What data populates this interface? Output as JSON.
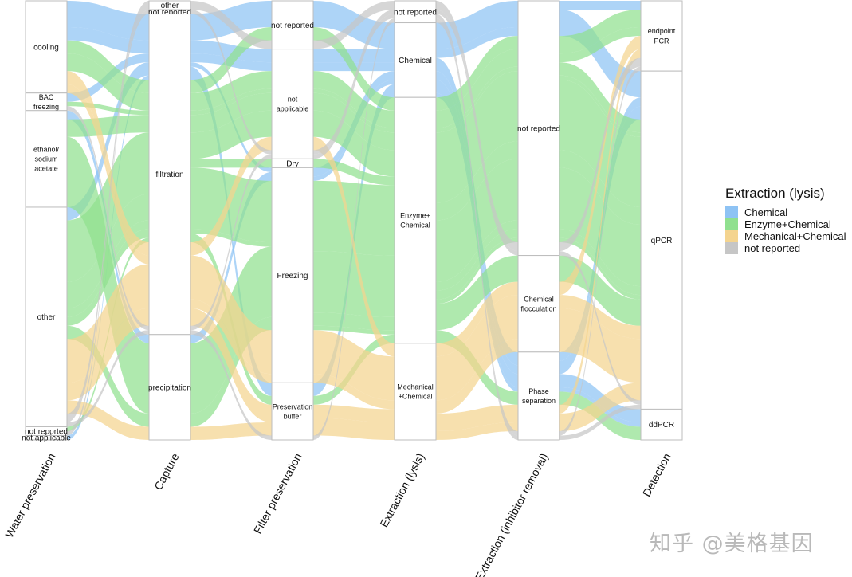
{
  "chart_data": {
    "type": "alluvial",
    "title": "",
    "axes": [
      {
        "key": "w",
        "label": "Water preservation",
        "strata": [
          {
            "name": "cooling",
            "label": "cooling"
          },
          {
            "name": "BAC",
            "label": "BAC\nfreezing"
          },
          {
            "name": "ethanol",
            "label": "ethanol/\nsodium\nacetate"
          },
          {
            "name": "other",
            "label": "other"
          },
          {
            "name": "nr",
            "label": "not reported"
          },
          {
            "name": "na",
            "label": "not applicable"
          }
        ]
      },
      {
        "key": "c",
        "label": "Capture",
        "strata": [
          {
            "name": "other",
            "label": "other"
          },
          {
            "name": "nr",
            "label": "not reported"
          },
          {
            "name": "filt",
            "label": "filtration"
          },
          {
            "name": "precip",
            "label": "precipitation"
          }
        ]
      },
      {
        "key": "f",
        "label": "Filter preservation",
        "strata": [
          {
            "name": "nr",
            "label": "not reported"
          },
          {
            "name": "na",
            "label": "not\napplicable"
          },
          {
            "name": "Dry",
            "label": "Dry"
          },
          {
            "name": "Freezing",
            "label": "Freezing"
          },
          {
            "name": "PB",
            "label": "Preservation\nbuffer"
          }
        ]
      },
      {
        "key": "e",
        "label": "Extraction (lysis)",
        "strata": [
          {
            "name": "nr",
            "label": "not reported"
          },
          {
            "name": "Chem",
            "label": "Chemical"
          },
          {
            "name": "Enz",
            "label": "Enzyme+\nChemical"
          },
          {
            "name": "Mech",
            "label": "Mechanical\n+Chemical"
          }
        ]
      },
      {
        "key": "i",
        "label": "Extraction (inhibitor removal)",
        "strata": [
          {
            "name": "nr",
            "label": "not reported"
          },
          {
            "name": "CF",
            "label": "Chemical\nflocculation"
          },
          {
            "name": "PS",
            "label": "Phase\nseparation"
          }
        ]
      },
      {
        "key": "d",
        "label": "Detection",
        "strata": [
          {
            "name": "endpoint",
            "label": "endpoint\nPCR"
          },
          {
            "name": "qPCR",
            "label": "qPCR"
          },
          {
            "name": "ddPCR",
            "label": "ddPCR"
          }
        ]
      }
    ],
    "fill_by": "e",
    "legend": {
      "title": "Extraction (lysis)",
      "placement": "right",
      "items": [
        {
          "key": "Chem",
          "label": "Chemical",
          "color": "#8ec3f4"
        },
        {
          "key": "Enz",
          "label": "Enzyme+Chemical",
          "color": "#90e08f"
        },
        {
          "key": "Mech",
          "label": "Mechanical+Chemical",
          "color": "#f4d48f"
        },
        {
          "key": "nr",
          "label": "not reported",
          "color": "#c6c6c6"
        }
      ]
    },
    "paths": [
      {
        "w": "cooling",
        "c": "filt",
        "f": "nr",
        "e": "Chem",
        "i": "nr",
        "d": "qPCR",
        "n": 6
      },
      {
        "w": "cooling",
        "c": "filt",
        "f": "na",
        "e": "Chem",
        "i": "PS",
        "d": "ddPCR",
        "n": 3
      },
      {
        "w": "BAC",
        "c": "filt",
        "f": "na",
        "e": "Chem",
        "i": "PS",
        "d": "qPCR",
        "n": 2
      },
      {
        "w": "ethanol",
        "c": "precip",
        "f": "Freezing",
        "e": "Chem",
        "i": "nr",
        "d": "endpoint",
        "n": 2
      },
      {
        "w": "other",
        "c": "filt",
        "f": "PB",
        "e": "Chem",
        "i": "PS",
        "d": "qPCR",
        "n": 3
      },
      {
        "w": "na",
        "c": "filt",
        "f": "Freezing",
        "e": "Chem",
        "i": "PS",
        "d": "ddPCR",
        "n": 1
      },
      {
        "w": "cooling",
        "c": "filt",
        "f": "nr",
        "e": "Enz",
        "i": "nr",
        "d": "qPCR",
        "n": 3
      },
      {
        "w": "cooling",
        "c": "filt",
        "f": "na",
        "e": "Enz",
        "i": "nr",
        "d": "endpoint",
        "n": 4
      },
      {
        "w": "BAC",
        "c": "filt",
        "f": "na",
        "e": "Enz",
        "i": "nr",
        "d": "qPCR",
        "n": 1
      },
      {
        "w": "ethanol",
        "c": "precip",
        "f": "Freezing",
        "e": "Enz",
        "i": "nr",
        "d": "qPCR",
        "n": 16
      },
      {
        "w": "ethanol",
        "c": "filt",
        "f": "na",
        "e": "Enz",
        "i": "nr",
        "d": "qPCR",
        "n": 4
      },
      {
        "w": "other",
        "c": "filt",
        "f": "Freezing",
        "e": "Enz",
        "i": "nr",
        "d": "qPCR",
        "n": 14
      },
      {
        "w": "other",
        "c": "filt",
        "f": "na",
        "e": "Enz",
        "i": "CF",
        "d": "qPCR",
        "n": 6
      },
      {
        "w": "other",
        "c": "precip",
        "f": "Freezing",
        "e": "Enz",
        "i": "PS",
        "d": "ddPCR",
        "n": 3
      },
      {
        "w": "other",
        "c": "filt",
        "f": "Dry",
        "e": "Enz",
        "i": "nr",
        "d": "endpoint",
        "n": 2
      },
      {
        "w": "other",
        "c": "filt",
        "f": "PB",
        "e": "Enz",
        "i": "nr",
        "d": "qPCR",
        "n": 2
      },
      {
        "w": "nr",
        "c": "filt",
        "f": "Freezing",
        "e": "Enz",
        "i": "nr",
        "d": "qPCR",
        "n": 1
      },
      {
        "w": "cooling",
        "c": "filt",
        "f": "na",
        "e": "Mech",
        "i": "CF",
        "d": "qPCR",
        "n": 3
      },
      {
        "w": "other",
        "c": "filt",
        "f": "Freezing",
        "e": "Mech",
        "i": "CF",
        "d": "qPCR",
        "n": 10
      },
      {
        "w": "other",
        "c": "precip",
        "f": "PB",
        "e": "Mech",
        "i": "CF",
        "d": "endpoint",
        "n": 3
      },
      {
        "w": "other",
        "c": "filt",
        "f": "PB",
        "e": "Mech",
        "i": "PS",
        "d": "qPCR",
        "n": 4
      },
      {
        "w": "cooling",
        "c": "filt",
        "f": "Freezing",
        "e": "Mech",
        "i": "PS",
        "d": "endpoint",
        "n": 2
      },
      {
        "w": "BAC",
        "c": "filt",
        "f": "na",
        "e": "nr",
        "i": "PS",
        "d": "qPCR",
        "n": 1
      },
      {
        "w": "other",
        "c": "other",
        "f": "nr",
        "e": "nr",
        "i": "nr",
        "d": "endpoint",
        "n": 2
      },
      {
        "w": "nr",
        "c": "nr",
        "f": "na",
        "e": "nr",
        "i": "nr",
        "d": "qPCR",
        "n": 1
      },
      {
        "w": "other",
        "c": "filt",
        "f": "PB",
        "e": "nr",
        "i": "PS",
        "d": "endpoint",
        "n": 1
      }
    ]
  },
  "watermark": "知乎 @美格基因"
}
